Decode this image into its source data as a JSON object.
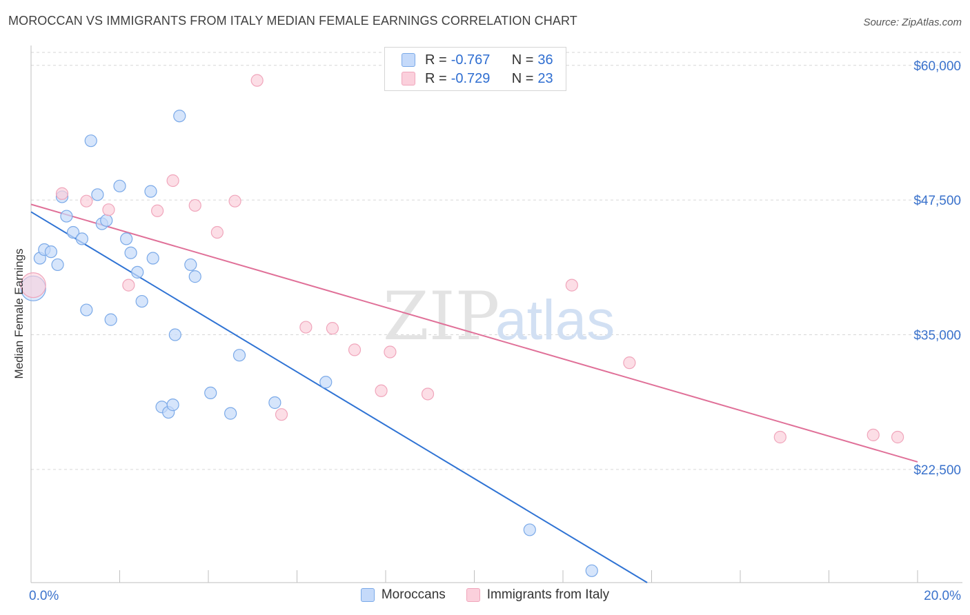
{
  "header": {
    "title": "MOROCCAN VS IMMIGRANTS FROM ITALY MEDIAN FEMALE EARNINGS CORRELATION CHART",
    "source": "Source: ZipAtlas.com"
  },
  "stats": [
    {
      "r_label": "R =",
      "r_value": "-0.767",
      "n_label": "N =",
      "n_value": "36"
    },
    {
      "r_label": "R =",
      "r_value": "-0.729",
      "n_label": "N =",
      "n_value": "23"
    }
  ],
  "watermark": {
    "zip": "ZIP",
    "atlas": "atlas"
  },
  "chart_data": {
    "type": "scatter",
    "xlabel": "",
    "ylabel": "Median Female Earnings",
    "xlim": [
      0,
      20
    ],
    "ylim": [
      12000,
      61200
    ],
    "x_tick_labels": [
      "0.0%",
      "20.0%"
    ],
    "y_ticks": [
      22500,
      35000,
      47500,
      60000
    ],
    "y_tick_labels": [
      "$22,500",
      "$35,000",
      "$47,500",
      "$60,000"
    ],
    "grid": true,
    "legend_position": "bottom",
    "series": [
      {
        "name": "Moroccans",
        "color": "#7aa9e8",
        "fill": "#c5dafa",
        "trend_color": "#2f73d4",
        "trend": {
          "x0": 0,
          "y0": 46400,
          "x1": 13.9,
          "y1": 12000
        },
        "points": [
          {
            "x": 0.05,
            "y": 39300,
            "big": true
          },
          {
            "x": 0.2,
            "y": 42100
          },
          {
            "x": 0.3,
            "y": 42900
          },
          {
            "x": 0.45,
            "y": 42700
          },
          {
            "x": 0.6,
            "y": 41500
          },
          {
            "x": 0.7,
            "y": 47800
          },
          {
            "x": 0.8,
            "y": 46000
          },
          {
            "x": 0.95,
            "y": 44500
          },
          {
            "x": 1.15,
            "y": 43900
          },
          {
            "x": 1.25,
            "y": 37300
          },
          {
            "x": 1.35,
            "y": 53000
          },
          {
            "x": 1.5,
            "y": 48000
          },
          {
            "x": 1.6,
            "y": 45300
          },
          {
            "x": 1.7,
            "y": 45600
          },
          {
            "x": 1.8,
            "y": 36400
          },
          {
            "x": 2.0,
            "y": 48800
          },
          {
            "x": 2.15,
            "y": 43900
          },
          {
            "x": 2.25,
            "y": 42600
          },
          {
            "x": 2.4,
            "y": 40800
          },
          {
            "x": 2.5,
            "y": 38100
          },
          {
            "x": 2.7,
            "y": 48300
          },
          {
            "x": 2.75,
            "y": 42100
          },
          {
            "x": 2.95,
            "y": 28300
          },
          {
            "x": 3.1,
            "y": 27800
          },
          {
            "x": 3.2,
            "y": 28500
          },
          {
            "x": 3.25,
            "y": 35000
          },
          {
            "x": 3.35,
            "y": 55300
          },
          {
            "x": 3.6,
            "y": 41500
          },
          {
            "x": 3.7,
            "y": 40400
          },
          {
            "x": 4.05,
            "y": 29600
          },
          {
            "x": 4.5,
            "y": 27700
          },
          {
            "x": 4.7,
            "y": 33100
          },
          {
            "x": 5.5,
            "y": 28700
          },
          {
            "x": 6.65,
            "y": 30600
          },
          {
            "x": 11.25,
            "y": 16900
          },
          {
            "x": 12.65,
            "y": 13100
          }
        ]
      },
      {
        "name": "Immigrants from Italy",
        "color": "#f0a5bb",
        "fill": "#fbd0dc",
        "trend_color": "#e07098",
        "trend": {
          "x0": 0,
          "y0": 47100,
          "x1": 20,
          "y1": 23200
        },
        "points": [
          {
            "x": 0.05,
            "y": 39600,
            "big": true
          },
          {
            "x": 0.7,
            "y": 48100
          },
          {
            "x": 1.25,
            "y": 47400
          },
          {
            "x": 1.75,
            "y": 46600
          },
          {
            "x": 2.2,
            "y": 39600
          },
          {
            "x": 2.85,
            "y": 46500
          },
          {
            "x": 3.2,
            "y": 49300
          },
          {
            "x": 3.7,
            "y": 47000
          },
          {
            "x": 4.2,
            "y": 44500
          },
          {
            "x": 4.6,
            "y": 47400
          },
          {
            "x": 5.1,
            "y": 58600
          },
          {
            "x": 5.65,
            "y": 27600
          },
          {
            "x": 6.2,
            "y": 35700
          },
          {
            "x": 6.8,
            "y": 35600
          },
          {
            "x": 7.3,
            "y": 33600
          },
          {
            "x": 7.9,
            "y": 29800
          },
          {
            "x": 8.1,
            "y": 33400
          },
          {
            "x": 8.95,
            "y": 29500
          },
          {
            "x": 12.2,
            "y": 39600
          },
          {
            "x": 13.5,
            "y": 32400
          },
          {
            "x": 16.9,
            "y": 25500
          },
          {
            "x": 19.0,
            "y": 25700
          },
          {
            "x": 19.55,
            "y": 25500
          }
        ]
      }
    ]
  }
}
